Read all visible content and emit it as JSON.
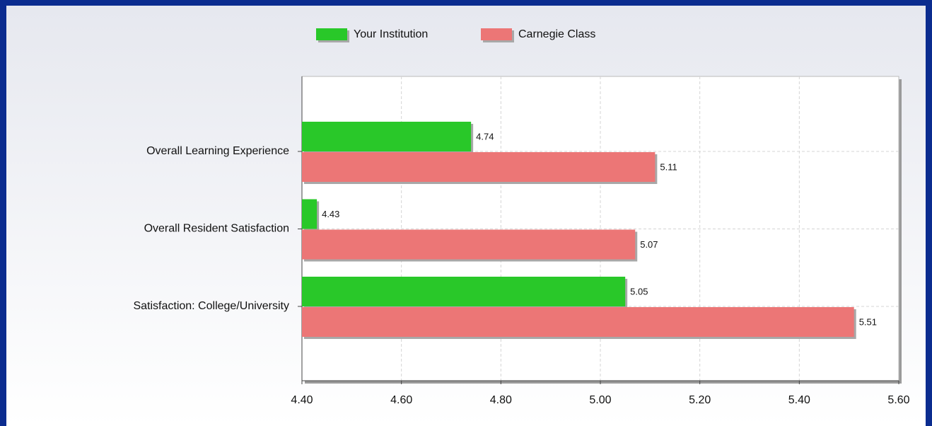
{
  "chart_data": {
    "type": "bar",
    "orientation": "horizontal",
    "categories": [
      "Overall Learning Experience",
      "Overall Resident Satisfaction",
      "Satisfaction: College/University"
    ],
    "series": [
      {
        "name": "Your Institution",
        "color": "#29c829",
        "values": [
          4.74,
          4.43,
          5.05
        ]
      },
      {
        "name": "Carnegie Class",
        "color": "#ec7676",
        "values": [
          5.11,
          5.07,
          5.51
        ]
      }
    ],
    "xlim": [
      4.4,
      5.6
    ],
    "xticks": [
      {
        "value": 4.4,
        "label": "4.40"
      },
      {
        "value": 4.6,
        "label": "4.60"
      },
      {
        "value": 4.8,
        "label": "4.80"
      },
      {
        "value": 5.0,
        "label": "5.00"
      },
      {
        "value": 5.2,
        "label": "5.20"
      },
      {
        "value": 5.4,
        "label": "5.40"
      },
      {
        "value": 5.6,
        "label": "5.60"
      }
    ],
    "grid": true,
    "legend": "top"
  }
}
